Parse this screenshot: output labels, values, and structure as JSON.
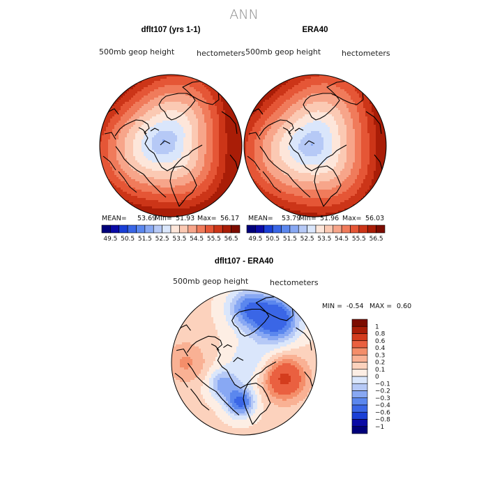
{
  "title": "ANN",
  "panels": [
    {
      "id": "model",
      "case_label": "dflt107 (yrs 1-1)",
      "variable": "500mb geop height",
      "units": "hectometers",
      "stats": {
        "mean_label": "MEAN=",
        "mean": "53.69",
        "min_label": "Min=",
        "min": "51.93",
        "max_label": "Max=",
        "max": "56.17"
      }
    },
    {
      "id": "obs",
      "case_label": "ERA40",
      "variable": "500mb geop height",
      "units": "hectometers",
      "stats": {
        "mean_label": "MEAN=",
        "mean": "53.79",
        "min_label": "Min=",
        "min": "51.96",
        "max_label": "Max=",
        "max": "56.03"
      }
    }
  ],
  "diff_panel": {
    "case_label": "dflt107 - ERA40",
    "variable": "500mb geop height",
    "units": "hectometers",
    "min_label": "MIN =",
    "min": "-0.54",
    "max_label": "MAX =",
    "max": "0.60"
  },
  "chart_data": [
    {
      "type": "heatmap",
      "projection": "north polar stereographic",
      "title": "dflt107 (yrs 1-1)",
      "field": "500mb geop height",
      "units": "hectometers",
      "mean": 53.69,
      "min": 51.93,
      "max": 56.17,
      "levels": [
        49.5,
        50.0,
        50.5,
        51.0,
        51.5,
        52.0,
        52.5,
        53.0,
        53.5,
        54.0,
        54.5,
        55.0,
        55.5,
        56.0,
        56.5
      ],
      "level_labels": [
        "49.5",
        "50.5",
        "51.5",
        "52.5",
        "53.5",
        "54.5",
        "55.5",
        "56.5"
      ]
    },
    {
      "type": "heatmap",
      "projection": "north polar stereographic",
      "title": "ERA40",
      "field": "500mb geop height",
      "units": "hectometers",
      "mean": 53.79,
      "min": 51.96,
      "max": 56.03,
      "levels": [
        49.5,
        50.0,
        50.5,
        51.0,
        51.5,
        52.0,
        52.5,
        53.0,
        53.5,
        54.0,
        54.5,
        55.0,
        55.5,
        56.0,
        56.5
      ],
      "level_labels": [
        "49.5",
        "50.5",
        "51.5",
        "52.5",
        "53.5",
        "54.5",
        "55.5",
        "56.5"
      ]
    },
    {
      "type": "heatmap",
      "projection": "north polar stereographic",
      "title": "dflt107 - ERA40",
      "field": "500mb geop height difference",
      "units": "hectometers",
      "min": -0.54,
      "max": 0.6,
      "levels": [
        -1,
        -0.8,
        -0.6,
        -0.4,
        -0.3,
        -0.2,
        -0.1,
        0,
        0.1,
        0.2,
        0.3,
        0.4,
        0.6,
        0.8,
        1
      ],
      "level_labels": [
        "1",
        "0.8",
        "0.6",
        "0.4",
        "0.3",
        "0.2",
        "0.1",
        "0",
        "−0.1",
        "−0.2",
        "−0.3",
        "−0.4",
        "−0.6",
        "−0.8",
        "−1"
      ]
    }
  ],
  "palette": {
    "field_colors": [
      "#00007a",
      "#0a0aa5",
      "#1a3fd6",
      "#3a66e6",
      "#5b87ee",
      "#88a8f3",
      "#b6c9f6",
      "#dae6fb",
      "#fde6da",
      "#fbc9b3",
      "#f7a58a",
      "#f07b5b",
      "#e55636",
      "#cc3518",
      "#a91d07",
      "#7c0c00"
    ],
    "diff_colors": [
      "#00007a",
      "#0a0aa5",
      "#1a3fd6",
      "#3a66e6",
      "#5b87ee",
      "#88a8f3",
      "#b6c9f6",
      "#dae6fb",
      "#fdeee4",
      "#fcd2bd",
      "#f9b194",
      "#f48e6a",
      "#ea6040",
      "#d43c1d",
      "#a91d07",
      "#7c0c00"
    ]
  }
}
